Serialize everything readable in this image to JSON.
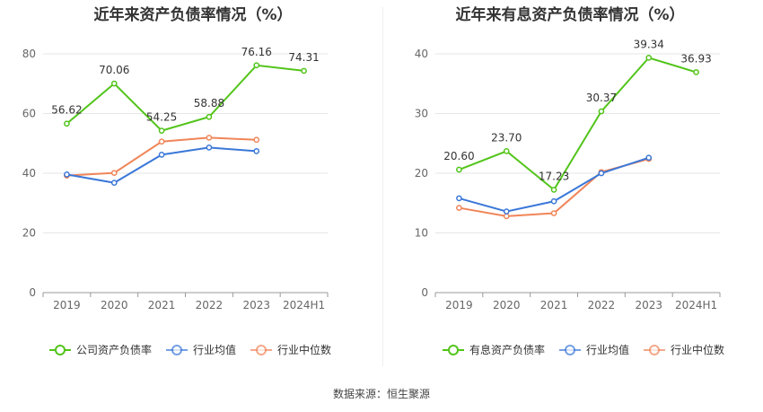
{
  "chart_data": [
    {
      "type": "line",
      "title": "近年来资产负债率情况（%）",
      "categories": [
        "2019",
        "2020",
        "2021",
        "2022",
        "2023",
        "2024H1"
      ],
      "ylim": [
        0,
        80
      ],
      "yticks": [
        0,
        20,
        40,
        60,
        80
      ],
      "grid": true,
      "legend_position": "bottom",
      "series": [
        {
          "name": "公司资产负债率",
          "color": "#52c41a",
          "values": [
            56.62,
            70.06,
            54.25,
            58.88,
            76.16,
            74.31
          ],
          "labels": [
            "56.62",
            "70.06",
            "54.25",
            "58.88",
            "76.16",
            "74.31"
          ]
        },
        {
          "name": "行业均值",
          "color": "#3b78d8",
          "values": [
            39.6,
            36.8,
            46.2,
            48.6,
            47.4,
            null
          ]
        },
        {
          "name": "行业中位数",
          "color": "#f08559",
          "values": [
            39.2,
            40.1,
            50.6,
            51.9,
            51.2,
            null
          ]
        }
      ]
    },
    {
      "type": "line",
      "title": "近年来有息资产负债率情况（%）",
      "categories": [
        "2019",
        "2020",
        "2021",
        "2022",
        "2023",
        "2024H1"
      ],
      "ylim": [
        0,
        40
      ],
      "yticks": [
        0,
        10,
        20,
        30,
        40
      ],
      "grid": true,
      "legend_position": "bottom",
      "series": [
        {
          "name": "有息资产负债率",
          "color": "#52c41a",
          "values": [
            20.6,
            23.7,
            17.23,
            30.37,
            39.34,
            36.93
          ],
          "labels": [
            "20.60",
            "23.70",
            "17.23",
            "30.37",
            "39.34",
            "36.93"
          ]
        },
        {
          "name": "行业均值",
          "color": "#3b78d8",
          "values": [
            15.8,
            13.6,
            15.3,
            20.0,
            22.6,
            null
          ]
        },
        {
          "name": "行业中位数",
          "color": "#f08559",
          "values": [
            14.2,
            12.8,
            13.3,
            20.2,
            22.4,
            null
          ]
        }
      ]
    }
  ],
  "footer": {
    "source": "数据来源：恒生聚源"
  }
}
